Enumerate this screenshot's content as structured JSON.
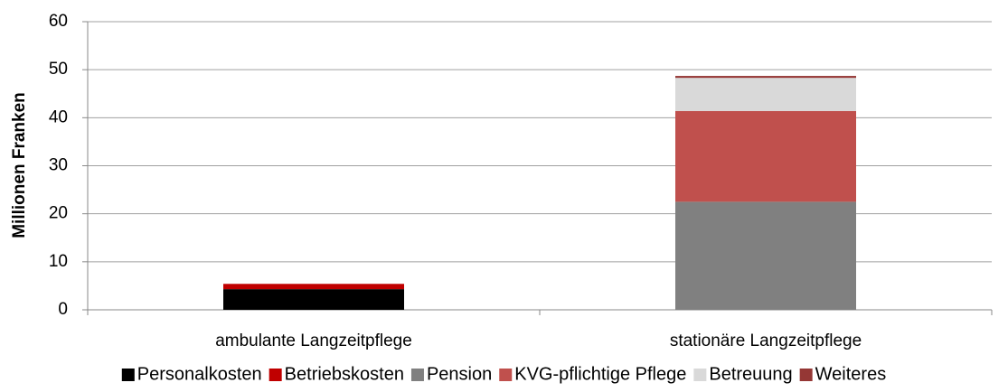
{
  "chart_data": {
    "type": "stacked_bar",
    "y_label": "Millionen Franken",
    "categories": [
      "ambulante Langzeitpflege",
      "stationäre Langzeitpflege"
    ],
    "series": [
      {
        "name": "Personalkosten",
        "color": "#000000",
        "values": [
          4.3,
          0
        ]
      },
      {
        "name": "Betriebskosten",
        "color": "#c00000",
        "values": [
          1.1,
          0
        ]
      },
      {
        "name": "Pension",
        "color": "#808080",
        "values": [
          0,
          22.5
        ]
      },
      {
        "name": "KVG-pflichtige Pflege",
        "color": "#c0504d",
        "values": [
          0,
          18.9
        ]
      },
      {
        "name": "Betreuung",
        "color": "#d9d9d9",
        "values": [
          0,
          6.9
        ]
      },
      {
        "name": "Weiteres",
        "color": "#953735",
        "values": [
          0,
          0.4
        ]
      }
    ],
    "ylim": [
      0,
      60
    ],
    "yticks": [
      0,
      10,
      20,
      30,
      40,
      50,
      60
    ],
    "grid": true,
    "legend": "bottom"
  }
}
